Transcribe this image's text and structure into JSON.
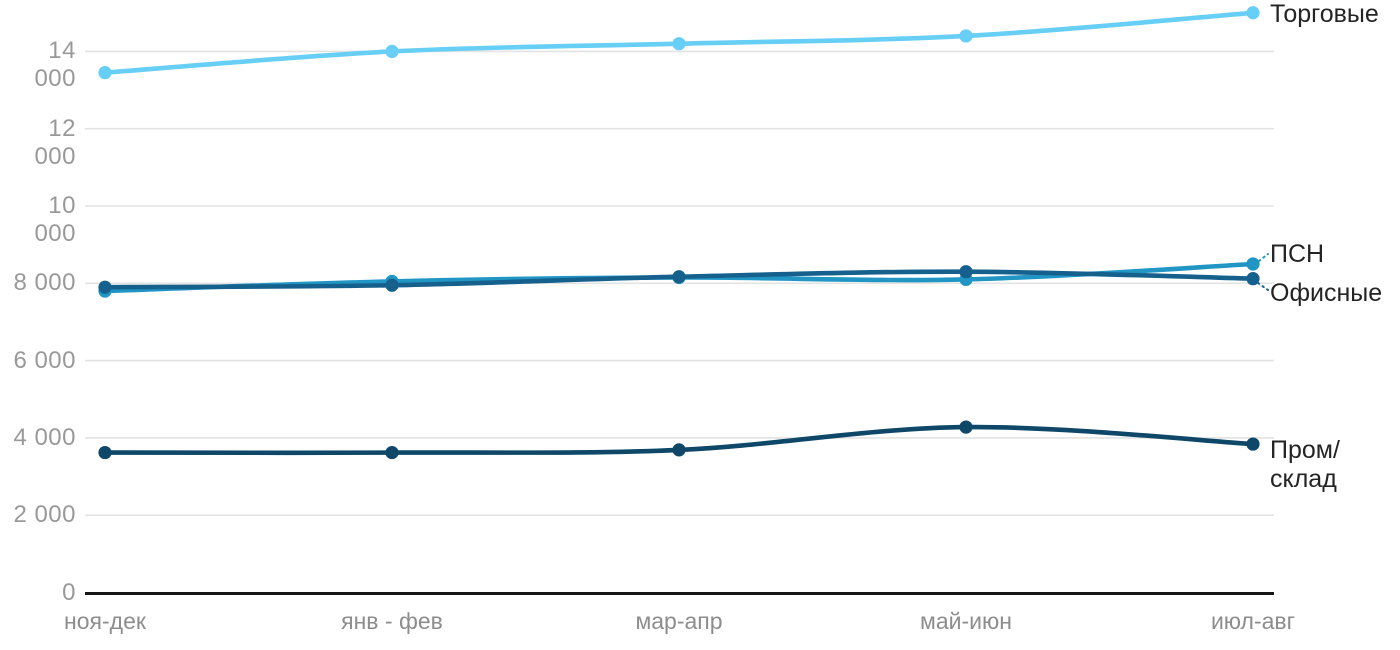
{
  "chart_data": {
    "type": "line",
    "title": "",
    "xlabel": "",
    "ylabel": "",
    "grid": true,
    "legend_position": "right-of-line-end",
    "ylim": [
      0,
      15000
    ],
    "categories": [
      "ноя-дек",
      "янв - фев",
      "мар-апр",
      "май-июн",
      "июл-авг"
    ],
    "y_ticks": [
      0,
      2000,
      4000,
      6000,
      8000,
      10000,
      12000,
      14000
    ],
    "y_tick_labels": [
      "0",
      "2 000",
      "4 000",
      "6 000",
      "8 000",
      "10 000",
      "12 000",
      "14 000"
    ],
    "series": [
      {
        "name": "Торговые",
        "label": "Торговые",
        "color": "#67CEF5",
        "values": [
          13450,
          14000,
          14200,
          14400,
          15000
        ]
      },
      {
        "name": "ПСН",
        "label": "ПСН",
        "color": "#2196C4",
        "values": [
          7800,
          8050,
          8150,
          8100,
          8500
        ],
        "connector": true
      },
      {
        "name": "Офисные",
        "label": "Офисные",
        "color": "#16608D",
        "values": [
          7900,
          7950,
          8170,
          8300,
          8120
        ],
        "connector": true
      },
      {
        "name": "Пром/склад",
        "label": "Пром/\nсклад",
        "color": "#0E4768",
        "values": [
          3620,
          3620,
          3690,
          4280,
          3840
        ]
      }
    ]
  },
  "colors": {
    "grid": "#E3E3E3",
    "axis": "#161616",
    "y_tick_label": "#999999",
    "x_tick_label": "#8D8D8D",
    "series_label": "#242424",
    "background": "#FFFFFF"
  }
}
